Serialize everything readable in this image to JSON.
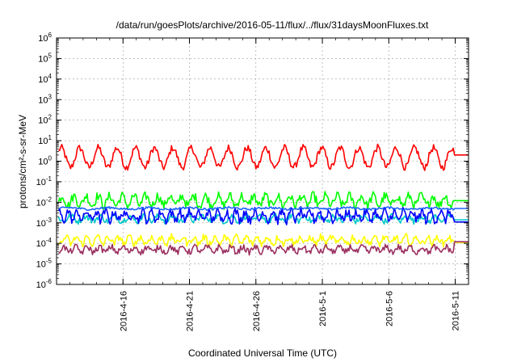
{
  "chart_data": {
    "type": "line",
    "title": "/data/run/goesPlots/archive/2016-05-11/flux/../flux/31daysMoonFluxes.txt",
    "xlabel": "Coordinated Universal Time (UTC)",
    "ylabel": "protons/cm²-s-sr-MeV",
    "y_scale": "log",
    "ylim": [
      1e-06,
      1000000.0
    ],
    "y_tick_labels": [
      {
        "base": "10",
        "exp": "-6"
      },
      {
        "base": "10",
        "exp": "-5"
      },
      {
        "base": "10",
        "exp": "-4"
      },
      {
        "base": "10",
        "exp": "-3"
      },
      {
        "base": "10",
        "exp": "-2"
      },
      {
        "base": "10",
        "exp": "-1"
      },
      {
        "base": "10",
        "exp": "0"
      },
      {
        "base": "10",
        "exp": "1"
      },
      {
        "base": "10",
        "exp": "2"
      },
      {
        "base": "10",
        "exp": "3"
      },
      {
        "base": "10",
        "exp": "4"
      },
      {
        "base": "10",
        "exp": "5"
      },
      {
        "base": "10",
        "exp": "6"
      }
    ],
    "x_start": "2016-04-11",
    "x_end": "2016-05-12",
    "x_ticks": [
      "2016-4-16",
      "2016-4-21",
      "2016-4-26",
      "2016-5-1",
      "2016-5-6",
      "2016-5-11"
    ],
    "grid": true,
    "series": [
      {
        "color": "#ff0000",
        "center": 1.5,
        "amp": 9,
        "noise": 0.35,
        "period": 1.4,
        "tail": 2
      },
      {
        "color": "#00ff00",
        "center": 0.012,
        "amp": 3,
        "noise": 0.45,
        "period": 0.9,
        "tail": 0.012
      },
      {
        "color": "#00c8c8",
        "center": 0.0016,
        "amp": 1.8,
        "noise": 0.3,
        "period": 1.1,
        "tail": 0.0014
      },
      {
        "color": "#0000ff",
        "center": 0.0022,
        "amp": 2.8,
        "noise": 0.45,
        "period": 0.7,
        "tail": 0.0011
      },
      {
        "color": "#1e64ff",
        "center": 0.005,
        "amp": 1.2,
        "noise": 0.1,
        "period": 3,
        "tail": 0.005
      },
      {
        "color": "#ffff00",
        "center": 0.00014,
        "amp": 2.2,
        "noise": 0.35,
        "period": 0.8,
        "tail": 0.00011
      },
      {
        "color": "#9b3060",
        "center": 5e-05,
        "amp": 1.8,
        "noise": 0.3,
        "period": 0.9,
        "tail": 0.00012
      }
    ]
  }
}
